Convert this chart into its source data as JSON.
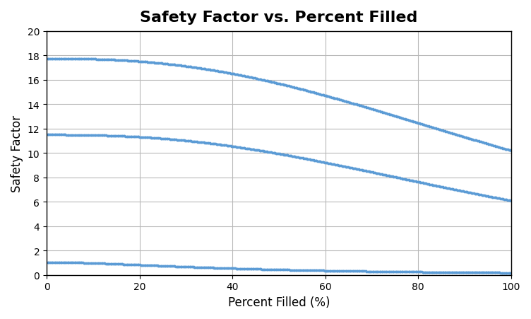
{
  "title": "Safety Factor vs. Percent Filled",
  "xlabel": "Percent Filled (%)",
  "ylabel": "Safety Factor",
  "xlim": [
    0,
    100
  ],
  "ylim": [
    0,
    20
  ],
  "yticks": [
    0,
    2,
    4,
    6,
    8,
    10,
    12,
    14,
    16,
    18,
    20
  ],
  "xticks": [
    0,
    20,
    40,
    60,
    80,
    100
  ],
  "background_color": "#ffffff",
  "grid_color": "#b8b8b8",
  "dot_color": "#5b9bd5",
  "dot_size": 3.5,
  "num_points": 400,
  "curve1_start": 17.75,
  "curve1_end": 10.2,
  "curve2_start": 11.5,
  "curve2_end": 6.1,
  "curve3_start": 1.05,
  "curve3_end": 0.18,
  "title_fontsize": 16,
  "axis_label_fontsize": 12,
  "tick_fontsize": 10
}
